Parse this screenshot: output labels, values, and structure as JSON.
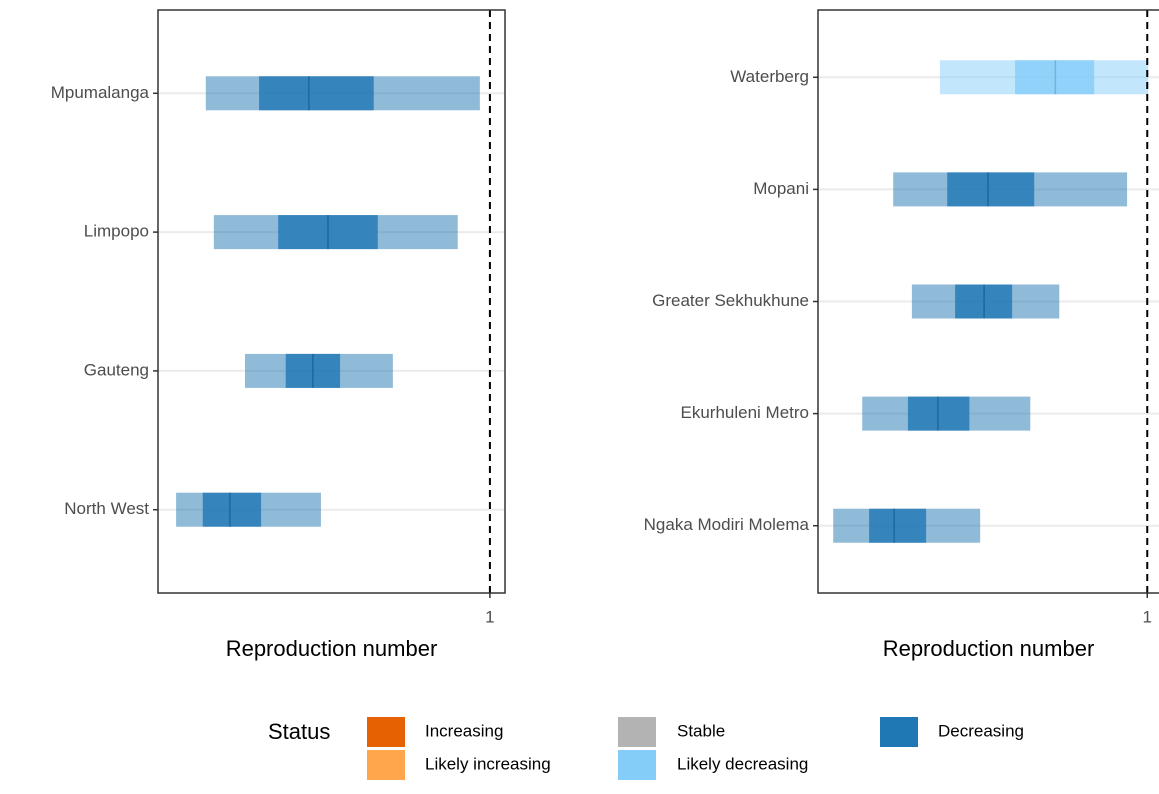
{
  "chart_data": [
    {
      "type": "interval",
      "xlabel": "Reproduction number",
      "categories": [
        "Mpumalanga",
        "Limpopo",
        "Gauteng",
        "North West"
      ],
      "lower90": [
        0.435,
        0.451,
        0.513,
        0.376
      ],
      "upper90": [
        0.98,
        0.936,
        0.807,
        0.664
      ],
      "lower50": [
        0.541,
        0.579,
        0.594,
        0.429
      ],
      "upper50": [
        0.769,
        0.777,
        0.702,
        0.545
      ],
      "median": [
        0.64,
        0.678,
        0.648,
        0.483
      ],
      "colors": [
        "#1f77b4",
        "#1f77b4",
        "#1f77b4",
        "#1f77b4"
      ],
      "xlim": [
        0.34,
        1.03
      ],
      "xticks": [
        1
      ],
      "reference_line": 1
    },
    {
      "type": "interval",
      "xlabel": "Reproduction number",
      "categories": [
        "Waterberg",
        "Mopani",
        "Greater Sekhukhune",
        "Ekurhuleni Metro",
        "Ngaka Modiri Molema"
      ],
      "lower90": [
        0.578,
        0.483,
        0.521,
        0.42,
        0.361
      ],
      "upper90": [
        1.002,
        0.959,
        0.821,
        0.762,
        0.66
      ],
      "lower50": [
        0.731,
        0.593,
        0.609,
        0.513,
        0.434
      ],
      "upper50": [
        0.892,
        0.77,
        0.725,
        0.638,
        0.55
      ],
      "median": [
        0.813,
        0.676,
        0.668,
        0.574,
        0.485
      ],
      "colors": [
        "#85cdf9",
        "#1f77b4",
        "#1f77b4",
        "#1f77b4",
        "#1f77b4"
      ],
      "xlim": [
        0.33,
        1.03
      ],
      "xticks": [
        1
      ],
      "reference_line": 1
    }
  ],
  "legend": {
    "title": "Status",
    "items": [
      {
        "name": "Increasing",
        "color": "#e66101"
      },
      {
        "name": "Likely increasing",
        "color": "#ffa64d"
      },
      {
        "name": "Stable",
        "color": "#b3b3b3"
      },
      {
        "name": "Likely decreasing",
        "color": "#85cdf9"
      },
      {
        "name": "Decreasing",
        "color": "#1f77b4"
      }
    ]
  }
}
